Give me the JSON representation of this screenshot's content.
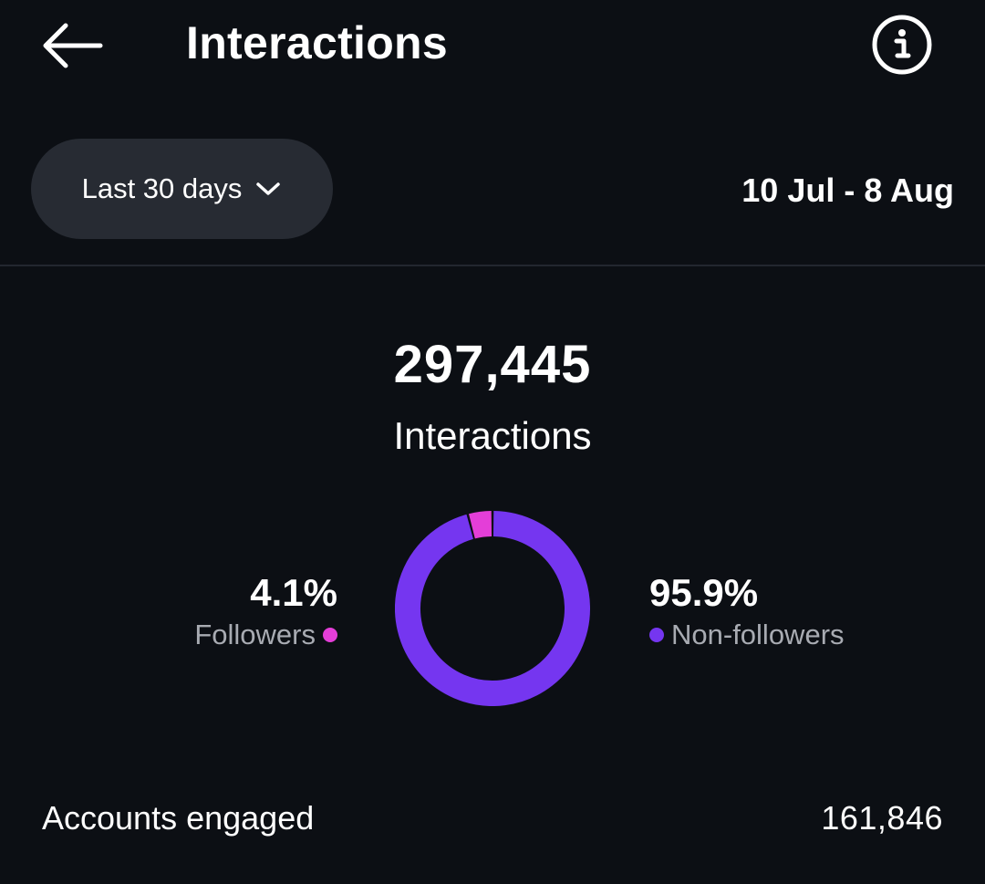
{
  "header": {
    "title": "Interactions",
    "back_icon": "arrow-left-icon",
    "info_icon": "info-circle-icon"
  },
  "filter": {
    "range_label": "Last 30 days",
    "range_icon": "chevron-down-icon",
    "date_range": "10 Jul - 8 Aug"
  },
  "summary": {
    "total_value": "297,445",
    "total_label": "Interactions"
  },
  "breakdown": {
    "followers": {
      "percent": "4.1%",
      "label": "Followers",
      "color": "#e43ed8"
    },
    "non_followers": {
      "percent": "95.9%",
      "label": "Non-followers",
      "color": "#7536f0"
    }
  },
  "chart_data": {
    "type": "pie",
    "categories": [
      "Followers",
      "Non-followers"
    ],
    "values": [
      4.1,
      95.9
    ],
    "colors": [
      "#e43ed8",
      "#7536f0"
    ]
  },
  "metrics": {
    "accounts_engaged_label": "Accounts engaged",
    "accounts_engaged_value": "161,846"
  }
}
